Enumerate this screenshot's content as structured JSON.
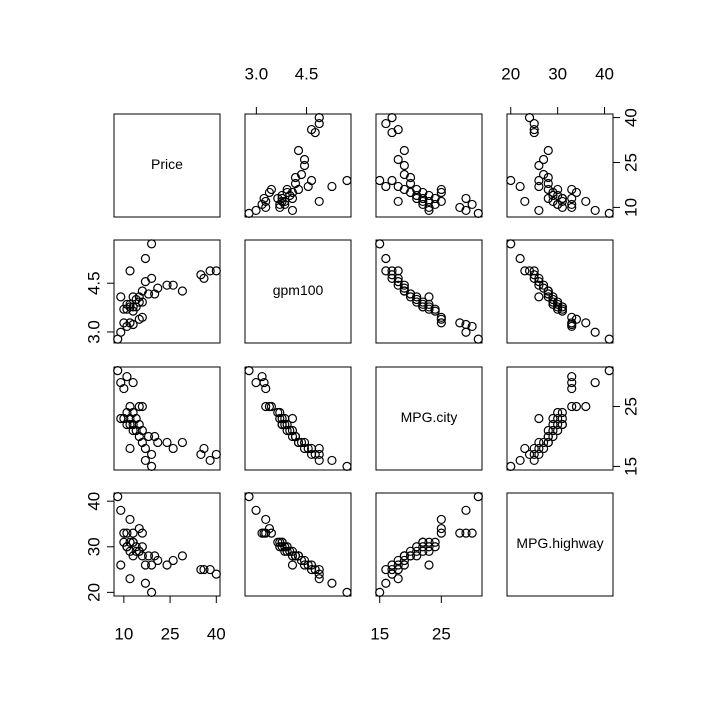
{
  "chart_data": {
    "type": "scatter-matrix",
    "point_color": "#000000",
    "variables": [
      {
        "name": "Price",
        "lim": [
          6.8,
          41.2
        ],
        "ticks": [
          10,
          25,
          40
        ],
        "values": [
          19,
          17,
          38,
          40,
          35,
          19,
          36,
          17,
          26,
          24,
          29,
          21,
          16,
          20,
          15,
          18,
          14,
          16,
          13,
          15,
          11,
          13,
          12,
          14,
          10,
          12,
          9,
          13,
          11,
          16,
          12,
          15,
          10,
          9,
          11,
          8,
          13,
          12
        ]
      },
      {
        "name": "gpm100",
        "lim": [
          2.66,
          5.83
        ],
        "ticks": [
          {
            "value": 3,
            "label": "3.0"
          },
          4.5
        ],
        "values": [
          5.71,
          5.26,
          4.88,
          4.88,
          4.76,
          4.65,
          4.65,
          4.55,
          4.44,
          4.44,
          4.26,
          4.35,
          4.26,
          4.17,
          4.08,
          4.17,
          4.0,
          3.92,
          4.08,
          3.92,
          3.85,
          3.77,
          3.77,
          3.77,
          3.7,
          3.85,
          4.08,
          3.64,
          3.7,
          3.45,
          3.28,
          3.39,
          3.28,
          2.99,
          3.17,
          2.78,
          3.23,
          4.88
        ]
      },
      {
        "name": "MPG.city",
        "lim": [
          14.4,
          31.6
        ],
        "ticks": [
          15,
          25
        ],
        "values": [
          15,
          16,
          16,
          17,
          17,
          17,
          18,
          18,
          18,
          19,
          19,
          19,
          19,
          20,
          20,
          20,
          21,
          21,
          21,
          22,
          22,
          22,
          22,
          23,
          23,
          23,
          23,
          24,
          24,
          25,
          25,
          25,
          28,
          29,
          30,
          31,
          29,
          18
        ]
      },
      {
        "name": "MPG.highway",
        "lim": [
          19.2,
          41.8
        ],
        "ticks": [
          20,
          30,
          40
        ],
        "values": [
          20,
          22,
          25,
          24,
          25,
          26,
          25,
          26,
          27,
          26,
          28,
          27,
          28,
          28,
          29,
          28,
          29,
          30,
          28,
          29,
          30,
          31,
          31,
          30,
          31,
          29,
          26,
          31,
          30,
          33,
          36,
          34,
          33,
          38,
          33,
          41,
          33,
          23
        ]
      }
    ]
  }
}
